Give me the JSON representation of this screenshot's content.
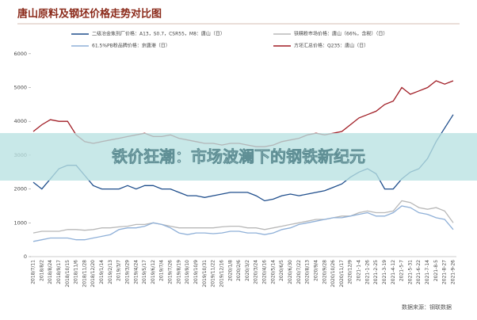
{
  "chart_data": {
    "type": "line",
    "title": "唐山原料及钢坯价格走势对比图",
    "categories": [
      "2018/7/11",
      "2018/8/2",
      "2018/8/24",
      "2018/9/17",
      "2018/10/15",
      "2018/11/6",
      "2018/11/28",
      "2018/12/20",
      "2019/1/14",
      "2019/2/13",
      "2019/3/7",
      "2019/3/29",
      "2019/4/24",
      "2019/5/17",
      "2019/6/12",
      "2019/7/4",
      "2019/7/26",
      "2019/8/19",
      "2019/9/10",
      "2019/10/9",
      "2019/10/31",
      "2019/11/22",
      "2019/12/16",
      "2020/1/8",
      "2020/2/6",
      "2020/3/2",
      "2020/3/24",
      "2020/4/16",
      "2020/5/14",
      "2020/6/5",
      "2020/6/30",
      "2020/7/22",
      "2020/8/13",
      "2020/9/4",
      "2020/9/28",
      "2020/10/26",
      "2020/11/17",
      "2020/12/9",
      "2021-1-4",
      "2021-1-26",
      "2021-2-25",
      "2021-3-19",
      "2021-4-12",
      "2021-5-7",
      "2021-5-31",
      "2021-6-22",
      "2021-7-14",
      "2021-8-5",
      "2021-8-27",
      "2021-9-26"
    ],
    "series": [
      {
        "name": "二级冶金焦到厂价格：A13，S0.7，CSR55，M8：唐山（日）",
        "color": "#1f4e8c",
        "values": [
          2200,
          2000,
          2300,
          2600,
          2700,
          2700,
          2400,
          2100,
          2000,
          2000,
          2000,
          2100,
          2000,
          2100,
          2100,
          2000,
          2000,
          1900,
          1800,
          1800,
          1750,
          1800,
          1850,
          1900,
          1900,
          1900,
          1800,
          1650,
          1700,
          1800,
          1850,
          1800,
          1850,
          1900,
          1950,
          2050,
          2150,
          2350,
          2500,
          2600,
          2450,
          2000,
          2000,
          2300,
          2500,
          2600,
          2900,
          3400,
          3800,
          4200
        ]
      },
      {
        "name": "铁精粉市场价格：唐山（66%，含税）（日）",
        "color": "#b8b8b8",
        "values": [
          700,
          750,
          750,
          750,
          800,
          800,
          780,
          800,
          850,
          850,
          880,
          900,
          950,
          950,
          1000,
          950,
          900,
          850,
          850,
          850,
          850,
          850,
          880,
          900,
          900,
          850,
          850,
          800,
          850,
          900,
          950,
          1000,
          1050,
          1100,
          1100,
          1150,
          1200,
          1200,
          1300,
          1350,
          1300,
          1300,
          1350,
          1650,
          1600,
          1450,
          1400,
          1450,
          1350,
          1000
        ]
      },
      {
        "name": "61.5%PB粉品牌价格：京唐港（日）",
        "color": "#8fb0d8",
        "values": [
          450,
          500,
          550,
          550,
          550,
          500,
          500,
          550,
          600,
          650,
          800,
          850,
          850,
          900,
          1000,
          950,
          850,
          700,
          650,
          700,
          700,
          680,
          700,
          750,
          750,
          700,
          700,
          650,
          700,
          800,
          850,
          950,
          1000,
          1050,
          1100,
          1150,
          1150,
          1200,
          1250,
          1300,
          1200,
          1200,
          1300,
          1500,
          1450,
          1300,
          1250,
          1150,
          1100,
          800
        ]
      },
      {
        "name": "方坯汇总价格：Q235：唐山（日）",
        "color": "#a01c24",
        "values": [
          3700,
          3900,
          4050,
          4000,
          4000,
          3600,
          3400,
          3350,
          3400,
          3450,
          3500,
          3550,
          3600,
          3650,
          3550,
          3550,
          3600,
          3500,
          3450,
          3400,
          3350,
          3350,
          3300,
          3350,
          3350,
          3300,
          3250,
          3250,
          3300,
          3400,
          3450,
          3500,
          3600,
          3650,
          3600,
          3650,
          3700,
          3900,
          4100,
          4200,
          4300,
          4500,
          4600,
          5000,
          4800,
          4900,
          5000,
          5200,
          5100,
          5200
        ]
      }
    ],
    "ylim": [
      0,
      6300
    ],
    "yticks": [
      0,
      1000,
      2000,
      3000,
      4000,
      5000,
      6000
    ],
    "source": "数据来源：钢联数据"
  },
  "banner": "铁价狂潮：市场波澜下的钢铁新纪元"
}
